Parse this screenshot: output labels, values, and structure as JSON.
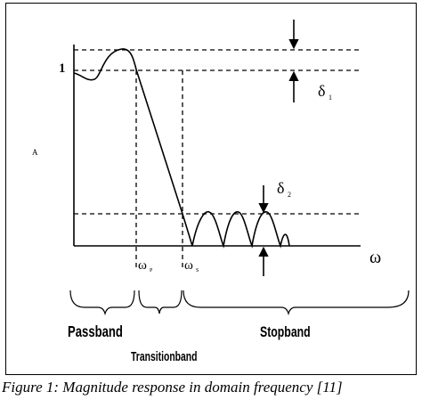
{
  "diagram": {
    "y_axis_label": "A",
    "y_tick_one": "1",
    "x_axis_label": "ω",
    "omega_p": "ω",
    "omega_p_sub": "P",
    "omega_s": "ω",
    "omega_s_sub": "S",
    "delta1": "δ",
    "delta1_sub": "1",
    "delta2": "δ",
    "delta2_sub": "2",
    "regions": {
      "passband": "Passband",
      "transitionband": "Transitionband",
      "stopband": "Stopband"
    }
  },
  "caption": "Figure 1: Magnitude response in domain frequency [11]"
}
